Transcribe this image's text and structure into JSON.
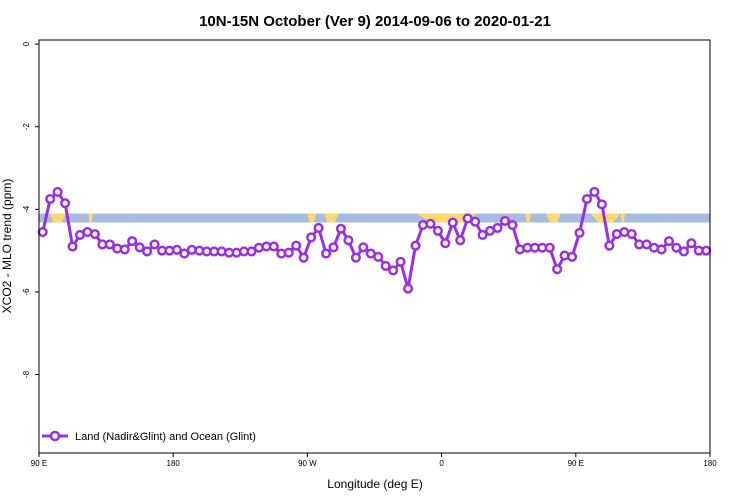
{
  "chart_data": {
    "type": "line",
    "title": "10N-15N October (Ver 9)   2014-09-06 to 2020-01-21",
    "xlabel": "Longitude (deg E)",
    "ylabel": "XCO2 - MLO trend (ppm)",
    "x_ticks": [
      {
        "value": 90,
        "label": "90 E"
      },
      {
        "value": 180,
        "label": "180"
      },
      {
        "value": 270,
        "label": "90 W"
      },
      {
        "value": 360,
        "label": "0"
      },
      {
        "value": 450,
        "label": "90 E"
      },
      {
        "value": 540,
        "label": "180"
      }
    ],
    "y_ticks": [
      {
        "value": 0,
        "label": "0"
      },
      {
        "value": -2,
        "label": "-2"
      },
      {
        "value": -4,
        "label": "-4"
      },
      {
        "value": -6,
        "label": "-6"
      },
      {
        "value": -8,
        "label": "-8"
      }
    ],
    "xlim": [
      90,
      540
    ],
    "ylim": [
      -9.9,
      0.1
    ],
    "grid": false,
    "legend_position": "bottom-left",
    "series": [
      {
        "name": "Land (Nadir&Glint) and Ocean (Glint)",
        "color": "#9b30e0",
        "x": [
          92.5,
          97.5,
          102.5,
          107.5,
          112.5,
          117.5,
          122.5,
          127.5,
          132.5,
          137.5,
          142.5,
          147.5,
          152.5,
          157.5,
          162.5,
          167.5,
          172.5,
          177.5,
          182.5,
          187.5,
          192.5,
          197.5,
          202.5,
          207.5,
          212.5,
          217.5,
          222.5,
          227.5,
          232.5,
          237.5,
          242.5,
          247.5,
          252.5,
          257.5,
          262.5,
          267.5,
          272.5,
          277.5,
          282.5,
          287.5,
          292.5,
          297.5,
          302.5,
          307.5,
          312.5,
          317.5,
          322.5,
          327.5,
          332.5,
          337.5,
          342.5,
          347.5,
          352.5,
          357.5,
          362.5,
          367.5,
          372.5,
          377.5,
          382.5,
          387.5,
          392.5,
          397.5,
          402.5,
          407.5,
          412.5,
          417.5,
          422.5,
          427.5,
          432.5,
          437.5,
          442.5,
          447.5,
          452.5,
          457.5,
          462.5,
          467.5,
          472.5,
          477.5,
          482.5,
          487.5,
          492.5,
          497.5,
          502.5,
          507.5,
          512.5,
          517.5,
          522.5,
          527.5,
          532.5,
          537.5
        ],
        "values": [
          -4.55,
          -3.75,
          -3.58,
          -3.85,
          -4.9,
          -4.62,
          -4.55,
          -4.6,
          -4.85,
          -4.85,
          -4.95,
          -4.97,
          -4.77,
          -4.92,
          -5.02,
          -4.85,
          -5.0,
          -5.0,
          -4.98,
          -5.07,
          -4.98,
          -5.0,
          -5.02,
          -5.02,
          -5.02,
          -5.05,
          -5.05,
          -5.02,
          -5.02,
          -4.93,
          -4.9,
          -4.9,
          -5.07,
          -5.05,
          -4.88,
          -5.17,
          -4.68,
          -4.45,
          -5.07,
          -4.92,
          -4.47,
          -4.75,
          -5.17,
          -4.92,
          -5.07,
          -5.15,
          -5.37,
          -5.48,
          -5.27,
          -5.92,
          -4.88,
          -4.38,
          -4.35,
          -4.52,
          -4.82,
          -4.32,
          -4.75,
          -4.22,
          -4.3,
          -4.62,
          -4.52,
          -4.45,
          -4.28,
          -4.38,
          -4.97,
          -4.93,
          -4.93,
          -4.93,
          -4.93,
          -5.45,
          -5.12,
          -5.15,
          -4.57,
          -3.75,
          -3.58,
          -3.88,
          -4.88,
          -4.6,
          -4.55,
          -4.6,
          -4.85,
          -4.85,
          -4.93,
          -4.97,
          -4.77,
          -4.93,
          -5.02,
          -4.82,
          -5.0,
          -5.0
        ]
      }
    ],
    "band": {
      "y_low": -4.32,
      "y_high": -4.1,
      "color": "#a6bddf"
    },
    "land_color": "#fcd96f",
    "land_spans": [
      [
        97,
        108
      ],
      [
        123,
        126
      ],
      [
        270,
        276
      ],
      [
        281,
        291
      ],
      [
        343,
        384
      ],
      [
        416,
        420
      ],
      [
        430,
        440
      ],
      [
        460,
        480
      ],
      [
        480,
        483
      ]
    ]
  }
}
